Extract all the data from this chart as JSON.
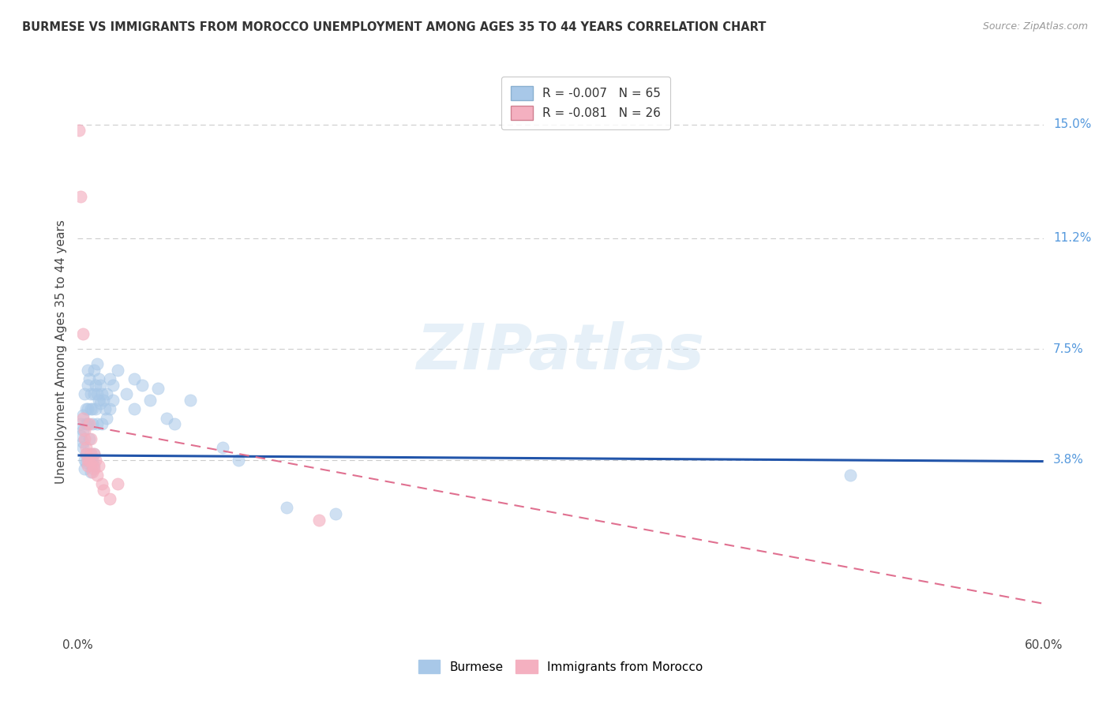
{
  "title": "BURMESE VS IMMIGRANTS FROM MOROCCO UNEMPLOYMENT AMONG AGES 35 TO 44 YEARS CORRELATION CHART",
  "source": "Source: ZipAtlas.com",
  "ylabel": "Unemployment Among Ages 35 to 44 years",
  "xlim": [
    0.0,
    0.6
  ],
  "ylim": [
    -0.02,
    0.168
  ],
  "xticks": [
    0.0,
    0.1,
    0.2,
    0.3,
    0.4,
    0.5,
    0.6
  ],
  "xticklabels": [
    "0.0%",
    "",
    "",
    "",
    "",
    "",
    "60.0%"
  ],
  "yticks_right": [
    0.0,
    0.038,
    0.075,
    0.112,
    0.15
  ],
  "yticklabels_right": [
    "",
    "3.8%",
    "7.5%",
    "11.2%",
    "15.0%"
  ],
  "legend_entries": [
    {
      "label_r": "R = -0.007",
      "label_n": "N = 65",
      "color": "#a8c8e8"
    },
    {
      "label_r": "R = -0.081",
      "label_n": "N = 26",
      "color": "#f4b8c8"
    }
  ],
  "watermark": "ZIPatlas",
  "blue_color": "#a8c8e8",
  "pink_color": "#f4b0c0",
  "blue_line_color": "#2255aa",
  "pink_line_color": "#e07090",
  "grid_color": "#cccccc",
  "bg_color": "#ffffff",
  "title_color": "#333333",
  "right_axis_color": "#5599dd",
  "blue_scatter": [
    [
      0.002,
      0.05
    ],
    [
      0.002,
      0.046
    ],
    [
      0.003,
      0.053
    ],
    [
      0.003,
      0.048
    ],
    [
      0.003,
      0.044
    ],
    [
      0.003,
      0.042
    ],
    [
      0.004,
      0.06
    ],
    [
      0.004,
      0.038
    ],
    [
      0.004,
      0.035
    ],
    [
      0.005,
      0.055
    ],
    [
      0.005,
      0.05
    ],
    [
      0.005,
      0.04
    ],
    [
      0.005,
      0.037
    ],
    [
      0.006,
      0.068
    ],
    [
      0.006,
      0.063
    ],
    [
      0.006,
      0.055
    ],
    [
      0.006,
      0.05
    ],
    [
      0.007,
      0.065
    ],
    [
      0.007,
      0.045
    ],
    [
      0.007,
      0.038
    ],
    [
      0.008,
      0.06
    ],
    [
      0.008,
      0.055
    ],
    [
      0.008,
      0.04
    ],
    [
      0.008,
      0.034
    ],
    [
      0.009,
      0.055
    ],
    [
      0.009,
      0.05
    ],
    [
      0.009,
      0.038
    ],
    [
      0.01,
      0.068
    ],
    [
      0.01,
      0.06
    ],
    [
      0.01,
      0.04
    ],
    [
      0.01,
      0.036
    ],
    [
      0.011,
      0.063
    ],
    [
      0.011,
      0.055
    ],
    [
      0.012,
      0.07
    ],
    [
      0.012,
      0.06
    ],
    [
      0.012,
      0.05
    ],
    [
      0.013,
      0.065
    ],
    [
      0.013,
      0.058
    ],
    [
      0.014,
      0.063
    ],
    [
      0.014,
      0.057
    ],
    [
      0.015,
      0.06
    ],
    [
      0.015,
      0.05
    ],
    [
      0.016,
      0.058
    ],
    [
      0.017,
      0.055
    ],
    [
      0.018,
      0.06
    ],
    [
      0.018,
      0.052
    ],
    [
      0.02,
      0.065
    ],
    [
      0.02,
      0.055
    ],
    [
      0.022,
      0.063
    ],
    [
      0.022,
      0.058
    ],
    [
      0.025,
      0.068
    ],
    [
      0.03,
      0.06
    ],
    [
      0.035,
      0.065
    ],
    [
      0.035,
      0.055
    ],
    [
      0.04,
      0.063
    ],
    [
      0.045,
      0.058
    ],
    [
      0.05,
      0.062
    ],
    [
      0.055,
      0.052
    ],
    [
      0.06,
      0.05
    ],
    [
      0.07,
      0.058
    ],
    [
      0.09,
      0.042
    ],
    [
      0.1,
      0.038
    ],
    [
      0.13,
      0.022
    ],
    [
      0.16,
      0.02
    ],
    [
      0.48,
      0.033
    ]
  ],
  "pink_scatter": [
    [
      0.001,
      0.148
    ],
    [
      0.002,
      0.126
    ],
    [
      0.003,
      0.08
    ],
    [
      0.003,
      0.052
    ],
    [
      0.004,
      0.048
    ],
    [
      0.004,
      0.045
    ],
    [
      0.005,
      0.042
    ],
    [
      0.005,
      0.04
    ],
    [
      0.006,
      0.038
    ],
    [
      0.006,
      0.036
    ],
    [
      0.007,
      0.05
    ],
    [
      0.007,
      0.038
    ],
    [
      0.008,
      0.045
    ],
    [
      0.008,
      0.04
    ],
    [
      0.009,
      0.036
    ],
    [
      0.009,
      0.034
    ],
    [
      0.01,
      0.04
    ],
    [
      0.01,
      0.035
    ],
    [
      0.011,
      0.038
    ],
    [
      0.012,
      0.033
    ],
    [
      0.013,
      0.036
    ],
    [
      0.015,
      0.03
    ],
    [
      0.016,
      0.028
    ],
    [
      0.02,
      0.025
    ],
    [
      0.025,
      0.03
    ],
    [
      0.15,
      0.018
    ]
  ],
  "blue_trend": {
    "x_start": 0.0,
    "x_end": 0.6,
    "y_start": 0.0395,
    "y_end": 0.0375
  },
  "pink_trend": {
    "x_start": 0.0,
    "x_end": 0.6,
    "y_start": 0.05,
    "y_end": -0.01
  }
}
